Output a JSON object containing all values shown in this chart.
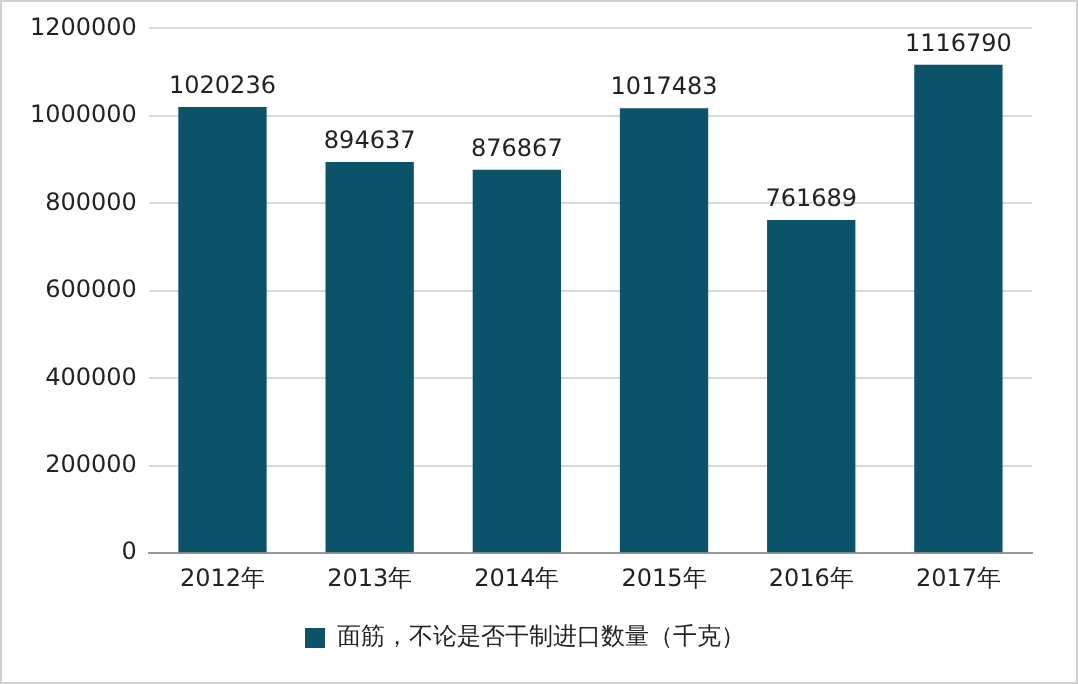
{
  "chart_data": {
    "type": "bar",
    "categories": [
      "2012年",
      "2013年",
      "2014年",
      "2015年",
      "2016年",
      "2017年"
    ],
    "series": [
      {
        "name": "面筋，不论是否干制进口数量（千克）",
        "color": "#0b5369",
        "values": [
          1020236,
          894637,
          876867,
          1017483,
          761689,
          1116790
        ]
      }
    ],
    "ylim": [
      0,
      1200000
    ],
    "yticks": [
      0,
      200000,
      400000,
      600000,
      800000,
      1000000,
      1200000
    ],
    "grid": "y",
    "legend": "bottom",
    "data_labels": true
  }
}
